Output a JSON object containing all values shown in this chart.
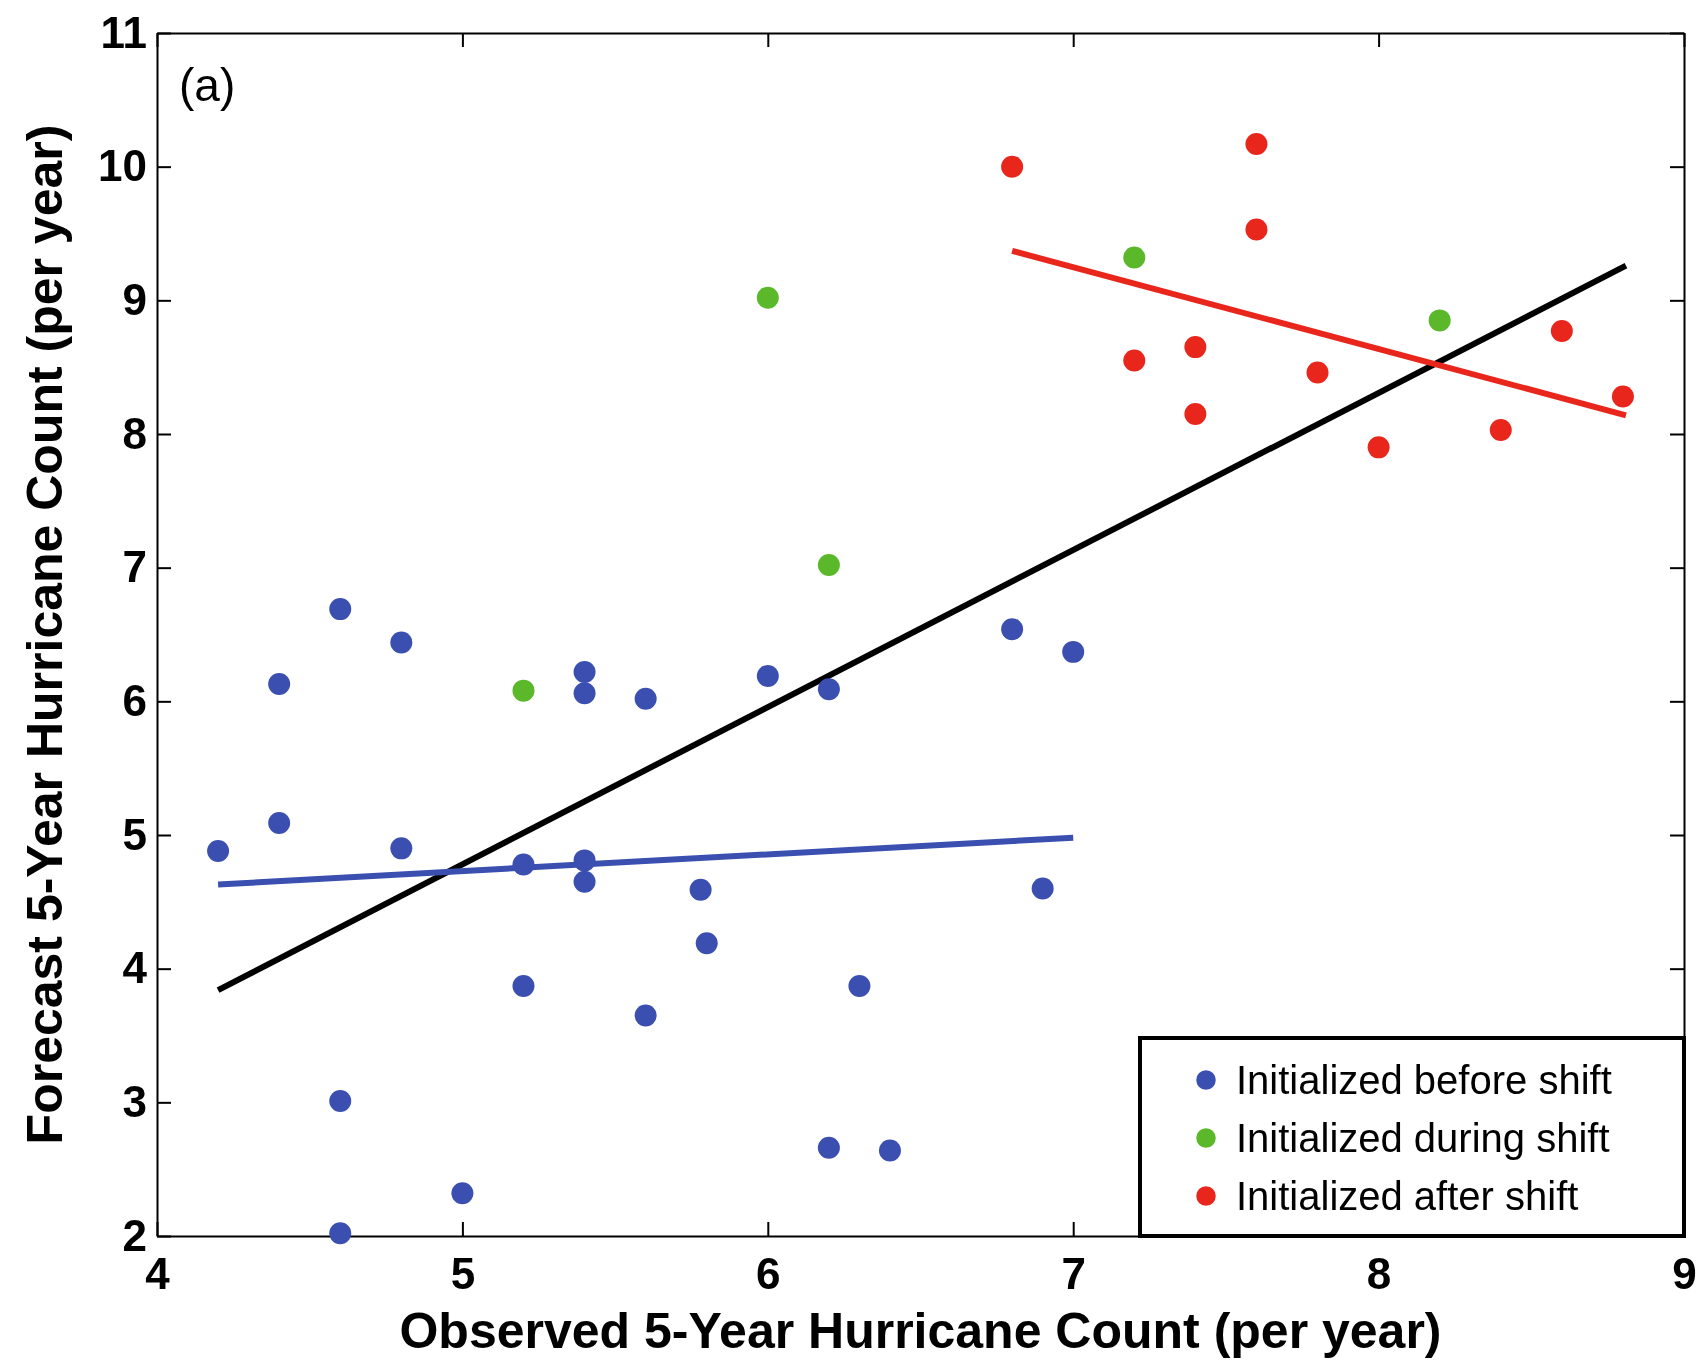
{
  "chart_data": {
    "type": "scatter",
    "xlabel": "Observed 5-Year Hurricane Count (per year)",
    "ylabel": "Forecast 5-Year Hurricane Count (per year)",
    "annotations": [
      "(a)"
    ],
    "xlim": [
      4,
      9
    ],
    "xticks": [
      4,
      5,
      6,
      7,
      8,
      9
    ],
    "ylim": [
      2,
      11
    ],
    "yticks": [
      2,
      3,
      4,
      5,
      6,
      7,
      8,
      9,
      10,
      11
    ],
    "grid": false,
    "legend": "bottom right",
    "marker": "circle",
    "series": [
      {
        "name": "Initialized before shift",
        "color": "#3a4fb0",
        "x": [
          4.2,
          4.4,
          4.4,
          4.6,
          4.6,
          4.6,
          4.8,
          4.8,
          5.0,
          5.2,
          5.2,
          5.4,
          5.4,
          5.4,
          5.4,
          5.6,
          5.6,
          5.78,
          5.8,
          6.0,
          6.2,
          6.2,
          6.3,
          6.4,
          6.8,
          6.9,
          7.0
        ],
        "values": [
          4.88,
          5.09,
          6.13,
          6.69,
          3.01,
          2.02,
          6.44,
          4.9,
          2.32,
          4.78,
          3.87,
          6.22,
          6.06,
          4.81,
          4.65,
          6.02,
          3.65,
          4.59,
          4.19,
          6.19,
          6.09,
          2.66,
          3.87,
          2.64,
          6.54,
          4.6,
          6.37
        ]
      },
      {
        "name": "Initialized during shift",
        "color": "#5ab82a",
        "x": [
          5.2,
          6.0,
          6.2,
          7.2,
          8.2
        ],
        "values": [
          6.08,
          9.02,
          7.02,
          9.32,
          8.85
        ]
      },
      {
        "name": "Initialized after shift",
        "color": "#e8261c",
        "x": [
          6.8,
          7.6,
          7.6,
          7.2,
          7.4,
          7.4,
          7.8,
          8.0,
          8.4,
          8.6,
          8.8
        ],
        "values": [
          10.0,
          10.17,
          9.53,
          8.55,
          8.65,
          8.15,
          8.46,
          7.9,
          8.03,
          8.77,
          8.28
        ]
      },
      {
        "type": "line",
        "marker": "none",
        "color": "#000000",
        "x": [
          4.2,
          8.81
        ],
        "values": [
          3.84,
          9.26
        ]
      },
      {
        "type": "line",
        "marker": "none",
        "color": "#3a4fb0",
        "x": [
          4.2,
          7.0
        ],
        "values": [
          4.63,
          4.98
        ]
      },
      {
        "type": "line",
        "marker": "none",
        "color": "#e8261c",
        "x": [
          6.8,
          8.81
        ],
        "values": [
          9.37,
          8.14
        ]
      }
    ]
  }
}
